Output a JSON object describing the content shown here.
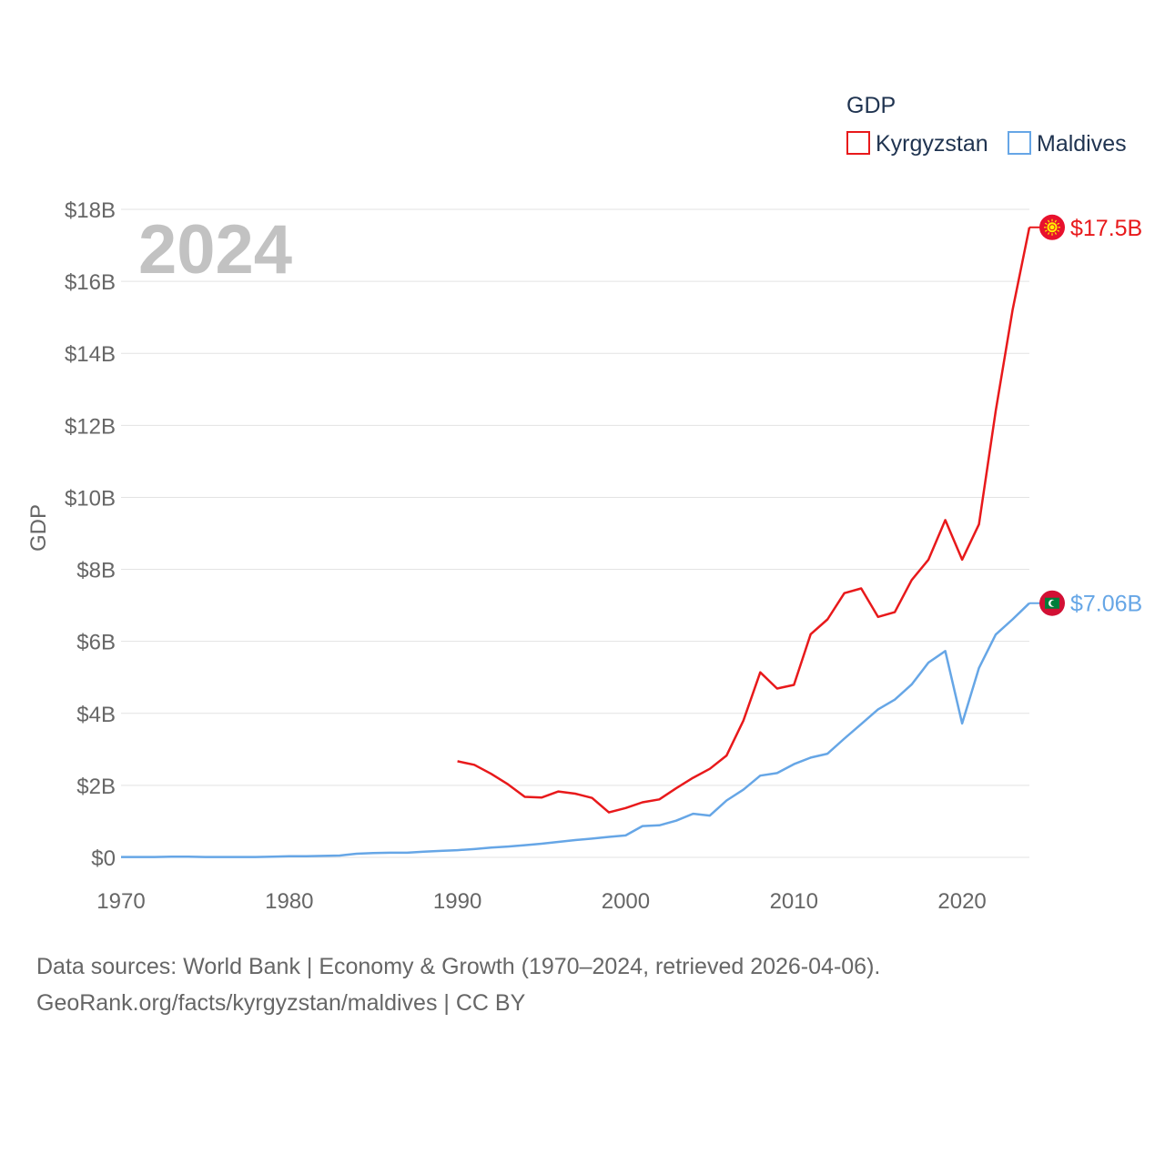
{
  "chart_data": {
    "type": "line",
    "year_label": "2024",
    "ylabel": "GDP",
    "xlim": [
      1970,
      2024
    ],
    "ylim": [
      0,
      18
    ],
    "y_unit": "billions USD",
    "x_ticks": [
      1970,
      1980,
      1990,
      2000,
      2010,
      2020
    ],
    "y_ticks": [
      {
        "value": 0,
        "label": "$0"
      },
      {
        "value": 2,
        "label": "$2B"
      },
      {
        "value": 4,
        "label": "$4B"
      },
      {
        "value": 6,
        "label": "$6B"
      },
      {
        "value": 8,
        "label": "$8B"
      },
      {
        "value": 10,
        "label": "$10B"
      },
      {
        "value": 12,
        "label": "$12B"
      },
      {
        "value": 14,
        "label": "$14B"
      },
      {
        "value": 16,
        "label": "$16B"
      },
      {
        "value": 18,
        "label": "$18B"
      }
    ],
    "legend": {
      "title": "GDP",
      "position": "top-right"
    },
    "series": [
      {
        "name": "Kyrgyzstan",
        "color": "#e8191b",
        "end_label": "$17.5B",
        "flag_icon": "kyrgyzstan-flag-icon",
        "x": [
          1990,
          1991,
          1992,
          1993,
          1994,
          1995,
          1996,
          1997,
          1998,
          1999,
          2000,
          2001,
          2002,
          2003,
          2004,
          2005,
          2006,
          2007,
          2008,
          2009,
          2010,
          2011,
          2012,
          2013,
          2014,
          2015,
          2016,
          2017,
          2018,
          2019,
          2020,
          2021,
          2022,
          2023,
          2024
        ],
        "values": [
          2.67,
          2.57,
          2.32,
          2.03,
          1.68,
          1.66,
          1.83,
          1.77,
          1.65,
          1.25,
          1.37,
          1.53,
          1.61,
          1.92,
          2.21,
          2.46,
          2.83,
          3.8,
          5.14,
          4.69,
          4.79,
          6.2,
          6.61,
          7.34,
          7.47,
          6.68,
          6.81,
          7.7,
          8.27,
          9.37,
          8.27,
          9.25,
          12.4,
          15.2,
          17.5
        ]
      },
      {
        "name": "Maldives",
        "color": "#66a6e6",
        "end_label": "$7.06B",
        "flag_icon": "maldives-flag-icon",
        "x": [
          1970,
          1971,
          1972,
          1973,
          1974,
          1975,
          1976,
          1977,
          1978,
          1979,
          1980,
          1981,
          1982,
          1983,
          1984,
          1985,
          1986,
          1987,
          1988,
          1989,
          1990,
          1991,
          1992,
          1993,
          1994,
          1995,
          1996,
          1997,
          1998,
          1999,
          2000,
          2001,
          2002,
          2003,
          2004,
          2005,
          2006,
          2007,
          2008,
          2009,
          2010,
          2011,
          2012,
          2013,
          2014,
          2015,
          2016,
          2017,
          2018,
          2019,
          2020,
          2021,
          2022,
          2023,
          2024
        ],
        "values": [
          0.01,
          0.01,
          0.01,
          0.02,
          0.02,
          0.01,
          0.01,
          0.01,
          0.01,
          0.02,
          0.03,
          0.03,
          0.04,
          0.05,
          0.1,
          0.12,
          0.13,
          0.13,
          0.16,
          0.18,
          0.2,
          0.23,
          0.27,
          0.3,
          0.34,
          0.38,
          0.43,
          0.48,
          0.52,
          0.57,
          0.61,
          0.87,
          0.89,
          1.02,
          1.21,
          1.16,
          1.58,
          1.88,
          2.27,
          2.34,
          2.59,
          2.77,
          2.88,
          3.3,
          3.7,
          4.11,
          4.38,
          4.8,
          5.41,
          5.73,
          3.72,
          5.26,
          6.19,
          6.61,
          7.06
        ]
      }
    ]
  },
  "footer": {
    "line1": "Data sources: World Bank | Economy & Growth (1970–2024, retrieved 2026-04-06).",
    "line2": "GeoRank.org/facts/kyrgyzstan/maldives | CC BY"
  }
}
